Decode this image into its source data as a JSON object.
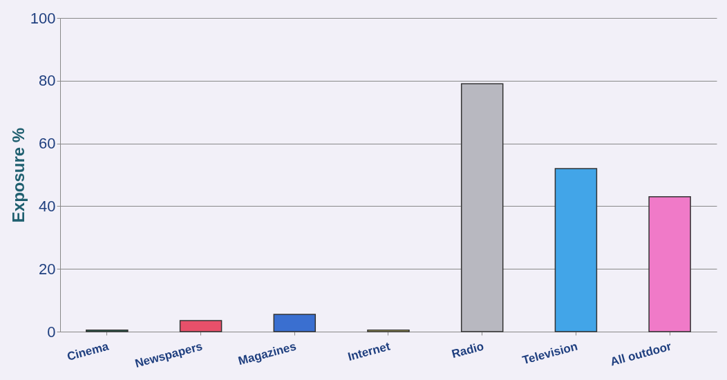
{
  "chart_data": {
    "type": "bar",
    "ylabel": "Exposure %",
    "categories": [
      "Cinema",
      "Newspapers",
      "Magazines",
      "Internet",
      "Radio",
      "Television",
      "All outdoor"
    ],
    "values": [
      0.5,
      3.5,
      5.5,
      0.5,
      79,
      52,
      43
    ],
    "colors": [
      "#2e7d63",
      "#e8506a",
      "#3a6fd0",
      "#d4cc6a",
      "#b8b8c0",
      "#42a5e8",
      "#f07ac8"
    ],
    "ylim": [
      0,
      100
    ],
    "yticks": [
      0,
      20,
      40,
      60,
      80,
      100
    ],
    "grid": "y",
    "legend": false
  }
}
